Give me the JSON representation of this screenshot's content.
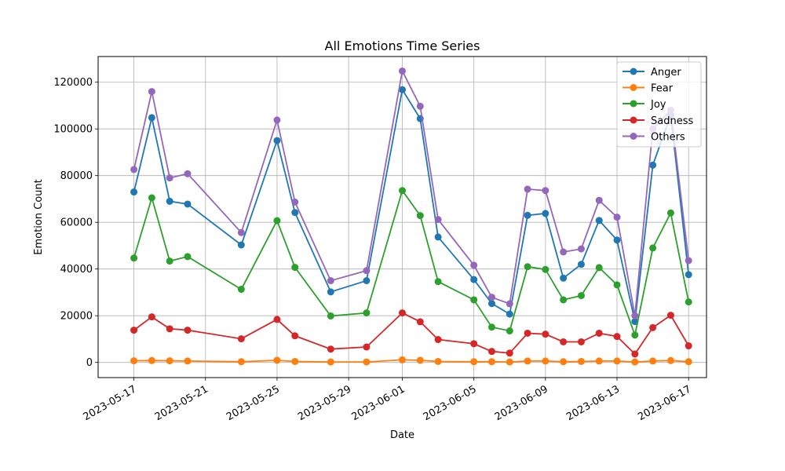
{
  "chart_data": {
    "type": "line",
    "title": "All Emotions Time Series",
    "xlabel": "Date",
    "ylabel": "Emotion Count",
    "grid": true,
    "legend_position": "top-right",
    "xlim": [
      "2023-05-15",
      "2023-06-18"
    ],
    "ylim": [
      -6500,
      131000
    ],
    "x_ticks": [
      "2023-05-17",
      "2023-05-21",
      "2023-05-25",
      "2023-05-29",
      "2023-06-01",
      "2023-06-05",
      "2023-06-09",
      "2023-06-13",
      "2023-06-17"
    ],
    "y_ticks": [
      "0",
      "20000",
      "40000",
      "60000",
      "80000",
      "100000",
      "120000"
    ],
    "x": [
      "2023-05-17",
      "2023-05-18",
      "2023-05-19",
      "2023-05-20",
      "2023-05-23",
      "2023-05-25",
      "2023-05-26",
      "2023-05-28",
      "2023-05-30",
      "2023-06-01",
      "2023-06-02",
      "2023-06-03",
      "2023-06-05",
      "2023-06-06",
      "2023-06-07",
      "2023-06-08",
      "2023-06-09",
      "2023-06-10",
      "2023-06-11",
      "2023-06-12",
      "2023-06-13",
      "2023-06-14",
      "2023-06-15",
      "2023-06-16",
      "2023-06-17"
    ],
    "series": [
      {
        "name": "Anger",
        "color": "#1f77b4",
        "values": [
          73000,
          104800,
          69000,
          67800,
          50300,
          95000,
          64200,
          30200,
          35000,
          116800,
          104400,
          53700,
          35500,
          25200,
          20700,
          63000,
          63800,
          36100,
          42000,
          60800,
          52400,
          17500,
          84500,
          106000,
          37600
        ]
      },
      {
        "name": "Fear",
        "color": "#ff7f0e",
        "values": [
          700,
          800,
          700,
          600,
          300,
          900,
          400,
          200,
          200,
          1100,
          900,
          400,
          300,
          300,
          200,
          600,
          600,
          300,
          400,
          600,
          600,
          200,
          600,
          800,
          300
        ]
      },
      {
        "name": "Joy",
        "color": "#2ca02c",
        "values": [
          44700,
          70500,
          43400,
          45300,
          31300,
          60700,
          40700,
          19900,
          21200,
          73600,
          62900,
          34600,
          26800,
          15100,
          13500,
          41000,
          39800,
          26800,
          28600,
          40600,
          33200,
          11700,
          49000,
          64000,
          25900
        ]
      },
      {
        "name": "Sadness",
        "color": "#d62728",
        "values": [
          13800,
          19500,
          14400,
          13800,
          10100,
          18400,
          11400,
          5700,
          6600,
          21200,
          17400,
          9800,
          8000,
          4700,
          4000,
          12500,
          12100,
          8800,
          8800,
          12500,
          11100,
          3600,
          14900,
          20200,
          7100
        ]
      },
      {
        "name": "Others",
        "color": "#9467bd",
        "values": [
          82600,
          116000,
          79000,
          80800,
          55600,
          103800,
          68700,
          35000,
          39300,
          124800,
          109700,
          61200,
          41600,
          27900,
          25100,
          74200,
          73600,
          47300,
          48600,
          69400,
          62200,
          20000,
          100000,
          108000,
          43600
        ]
      }
    ]
  }
}
